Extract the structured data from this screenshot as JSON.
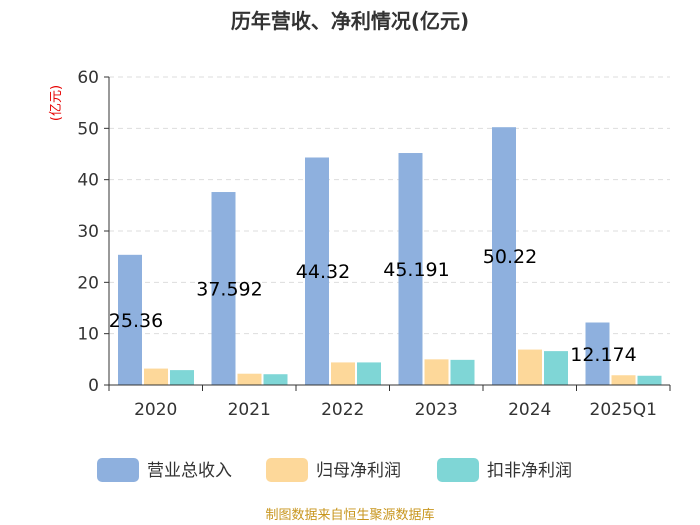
{
  "chart_data": {
    "type": "bar",
    "title": "历年营收、净利情况(亿元)",
    "ylabel": "(亿元)",
    "xlabel": "",
    "ylim": [
      0,
      60
    ],
    "yticks": [
      0,
      10,
      20,
      30,
      40,
      50,
      60
    ],
    "categories": [
      "2020",
      "2021",
      "2022",
      "2023",
      "2024",
      "2025Q1"
    ],
    "series": [
      {
        "name": "营业总收入",
        "color": "#8eb0de",
        "values": [
          25.36,
          37.592,
          44.32,
          45.191,
          50.22,
          12.174
        ]
      },
      {
        "name": "归母净利润",
        "color": "#fdd89a",
        "values": [
          3.2,
          2.2,
          4.4,
          5.0,
          6.9,
          1.9
        ]
      },
      {
        "name": "扣非净利润",
        "color": "#7fd6d6",
        "values": [
          2.9,
          2.1,
          4.4,
          4.9,
          6.6,
          1.8
        ]
      }
    ],
    "data_labels": [
      "25.36",
      "37.592",
      "44.32",
      "45.191",
      "50.22",
      "12.174"
    ],
    "legend_position": "bottom",
    "grid": "horizontal-dashed"
  },
  "source": "制图数据来自恒生聚源数据库"
}
